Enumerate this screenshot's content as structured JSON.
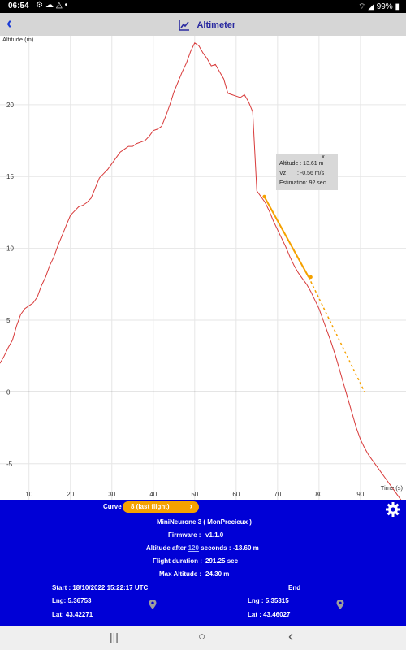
{
  "status_bar": {
    "time": "06:54",
    "battery": "99%",
    "icons": [
      "gear-icon",
      "cloud-icon",
      "shield-icon",
      "dot-icon",
      "wifi-icon",
      "signal-icon",
      "battery-icon"
    ]
  },
  "app_bar": {
    "title": "Altimeter",
    "back_icon": "chevron-left-icon",
    "title_icon": "chart-icon"
  },
  "chart_data": {
    "type": "line",
    "ylabel": "Altitude (m)",
    "xlabel": "Time (s)",
    "xlim": [
      3,
      101
    ],
    "ylim": [
      -7.5,
      24.8
    ],
    "x_ticks": [
      10,
      20,
      30,
      40,
      50,
      60,
      70,
      80,
      90
    ],
    "y_ticks": [
      -5,
      0,
      5,
      10,
      15,
      20
    ],
    "grid": true,
    "line_color": "#d83a3a",
    "series": [
      {
        "x": [
          3,
          4,
          5,
          6,
          7,
          8,
          9,
          10,
          11,
          12,
          13,
          14,
          15,
          16,
          17,
          18,
          19,
          20,
          21,
          22,
          23,
          24,
          25,
          26,
          27,
          28,
          29,
          30,
          31,
          32,
          33,
          34,
          35,
          36,
          37,
          38,
          39,
          40,
          41,
          42,
          43,
          44,
          45,
          46,
          47,
          48,
          49,
          50,
          51,
          52,
          53,
          54,
          55,
          56,
          57,
          58,
          59,
          60,
          61,
          62,
          63,
          64,
          65,
          66,
          67,
          68,
          69,
          70,
          71,
          72,
          73,
          74,
          75,
          76,
          77,
          78,
          79,
          80,
          81,
          82,
          83,
          84,
          85,
          86,
          87,
          88,
          89,
          90,
          91,
          92,
          93,
          94,
          95,
          96,
          97,
          98,
          99,
          100
        ],
        "y": [
          2.0,
          2.5,
          3.1,
          3.6,
          4.6,
          5.4,
          5.8,
          6.0,
          6.2,
          6.6,
          7.4,
          8.0,
          8.8,
          9.4,
          10.2,
          10.9,
          11.6,
          12.3,
          12.6,
          12.9,
          13.0,
          13.2,
          13.5,
          14.2,
          14.9,
          15.2,
          15.5,
          15.9,
          16.3,
          16.7,
          16.9,
          17.1,
          17.1,
          17.3,
          17.4,
          17.5,
          17.8,
          18.2,
          18.3,
          18.5,
          19.2,
          20.0,
          20.9,
          21.6,
          22.3,
          22.9,
          23.7,
          24.3,
          24.1,
          23.6,
          23.2,
          22.7,
          22.8,
          22.3,
          21.8,
          20.8,
          20.7,
          20.6,
          20.5,
          20.7,
          20.2,
          19.5,
          14.0,
          13.6,
          13.2,
          12.6,
          11.9,
          11.3,
          10.7,
          10.1,
          9.4,
          8.8,
          8.3,
          7.9,
          7.5,
          7.0,
          6.4,
          5.8,
          5.0,
          4.2,
          3.4,
          2.5,
          1.5,
          0.5,
          -0.5,
          -1.5,
          -2.5,
          -3.3,
          -3.9,
          -4.4,
          -4.8,
          -5.2,
          -5.6,
          -6.0,
          -6.4,
          -6.8,
          -7.2,
          -7.6
        ]
      }
    ],
    "regression": {
      "x": [
        66.8,
        77.5
      ],
      "y": [
        13.6,
        8.0
      ],
      "color": "#f5a100"
    },
    "estimation": {
      "x": [
        77.5,
        91
      ],
      "y": [
        8.0,
        0
      ],
      "color": "#f5a100"
    },
    "marker": {
      "x": 78,
      "y": 8.0
    },
    "tooltip": {
      "x_mark": "x",
      "altitude": "Altitude : 13.61 m",
      "vz_label": "Vz",
      "vz_value": ": -0.56 m/s",
      "estimation": "Estimation: 92 sec"
    }
  },
  "panel": {
    "curve_label": "Curve",
    "curve_value": "8 (last flight)",
    "device": "MiniNeurone 3 ( MonPrecieux )",
    "firmware_label": "Firmware :",
    "firmware_value": "v1.1.0",
    "alt_after_prefix": "Altitude after",
    "alt_after_link": "120",
    "alt_after_suffix": "seconds : -13.60 m",
    "flight_duration_label": "Flight duration :",
    "flight_duration_value": "291.25 sec",
    "max_alt_label": "Max Altitude :",
    "max_alt_value": "24.30 m",
    "start": "Start : 18/10/2022 15:22:17 UTC",
    "end": "End",
    "start_lng": "Lng: 5.36753",
    "start_lat": "Lat: 43.42271",
    "end_lng": "Lng : 5.35315",
    "end_lat": "Lat : 43.46027",
    "settings_icon": "gear-icon",
    "pin_icon": "map-pin-icon",
    "chevron_icon": "chevron-right-icon"
  },
  "nav": {
    "recents": "|||",
    "home": "○",
    "back": "‹"
  }
}
